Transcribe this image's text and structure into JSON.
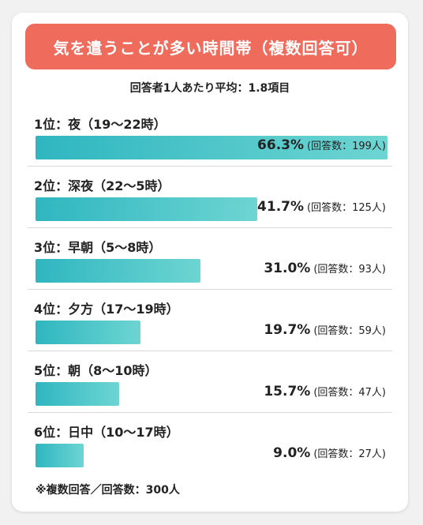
{
  "colors": {
    "header_bg": "#ef6b5c",
    "bar_start": "#2fb6c0",
    "bar_end": "#6dd5d2",
    "background": "#f1f1f1",
    "card": "#ffffff"
  },
  "header": {
    "title": "気を遣うことが多い時間帯（複数回答可）"
  },
  "subtitle": "回答者1人あたり平均：1.8項目",
  "footnote": "※複数回答／回答数：300人",
  "chart_data": {
    "type": "bar",
    "orientation": "horizontal",
    "title": "気を遣うことが多い時間帯（複数回答可）",
    "categories": [
      "1位：夜（19〜22時）",
      "2位：深夜（22〜5時）",
      "3位：早朝（5〜8時）",
      "4位：夕方（17〜19時）",
      "5位：朝（8〜10時）",
      "6位：日中（10〜17時）"
    ],
    "values": [
      66.3,
      41.7,
      31.0,
      19.7,
      15.7,
      9.0
    ],
    "value_labels": [
      "66.3%",
      "41.7%",
      "31.0%",
      "19.7%",
      "15.7%",
      "9.0%"
    ],
    "count_labels": [
      "(回答数：199人)",
      "(回答数：125人)",
      "(回答数：93人)",
      "(回答数：59人)",
      "(回答数：47人)",
      "(回答数：27人)"
    ],
    "xlim": [
      0,
      66.3
    ],
    "grid": false,
    "legend": "none"
  }
}
